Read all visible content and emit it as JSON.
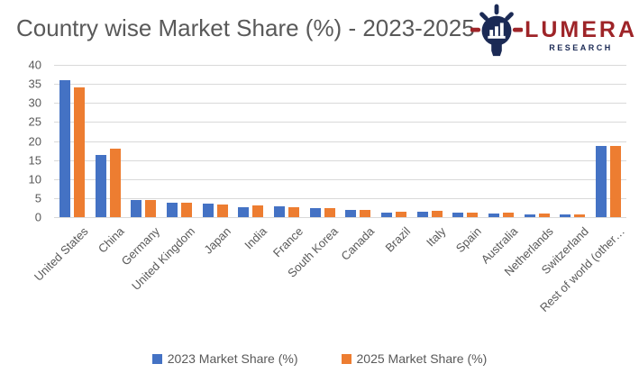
{
  "logo": {
    "name": "LUMERA",
    "subtitle": "RESEARCH",
    "brand_red": "#9E2428",
    "brand_navy": "#1B2A55"
  },
  "chart_data": {
    "type": "bar",
    "title": "Country wise Market Share (%) - 2023-2025",
    "categories": [
      "United States",
      "China",
      "Germany",
      "United Kingdom",
      "Japan",
      "India",
      "France",
      "South Korea",
      "Canada",
      "Brazil",
      "Italy",
      "Spain",
      "Australia",
      "Netherlands",
      "Switzerland",
      "Rest of world (other…"
    ],
    "series": [
      {
        "name": "2023 Market Share (%)",
        "color": "#4472C4",
        "values": [
          36,
          16.4,
          4.4,
          3.9,
          3.6,
          2.6,
          2.9,
          2.3,
          2.0,
          1.2,
          1.5,
          1.2,
          1.0,
          0.8,
          0.7,
          18.6
        ]
      },
      {
        "name": "2025 Market Share (%)",
        "color": "#ED7D31",
        "values": [
          34,
          17.9,
          4.6,
          3.9,
          3.3,
          3.1,
          2.5,
          2.4,
          1.8,
          1.5,
          1.6,
          1.3,
          1.2,
          0.9,
          0.8,
          18.6
        ]
      }
    ],
    "xlabel": "",
    "ylabel": "",
    "ylim": [
      0,
      40
    ],
    "yticks": [
      0,
      5,
      10,
      15,
      20,
      25,
      30,
      35,
      40
    ],
    "grid": true,
    "legend_position": "bottom",
    "colors": {
      "title_text": "#595959",
      "axis_text": "#595959",
      "gridline": "#D9D9D9",
      "background": "#FFFFFF"
    }
  }
}
